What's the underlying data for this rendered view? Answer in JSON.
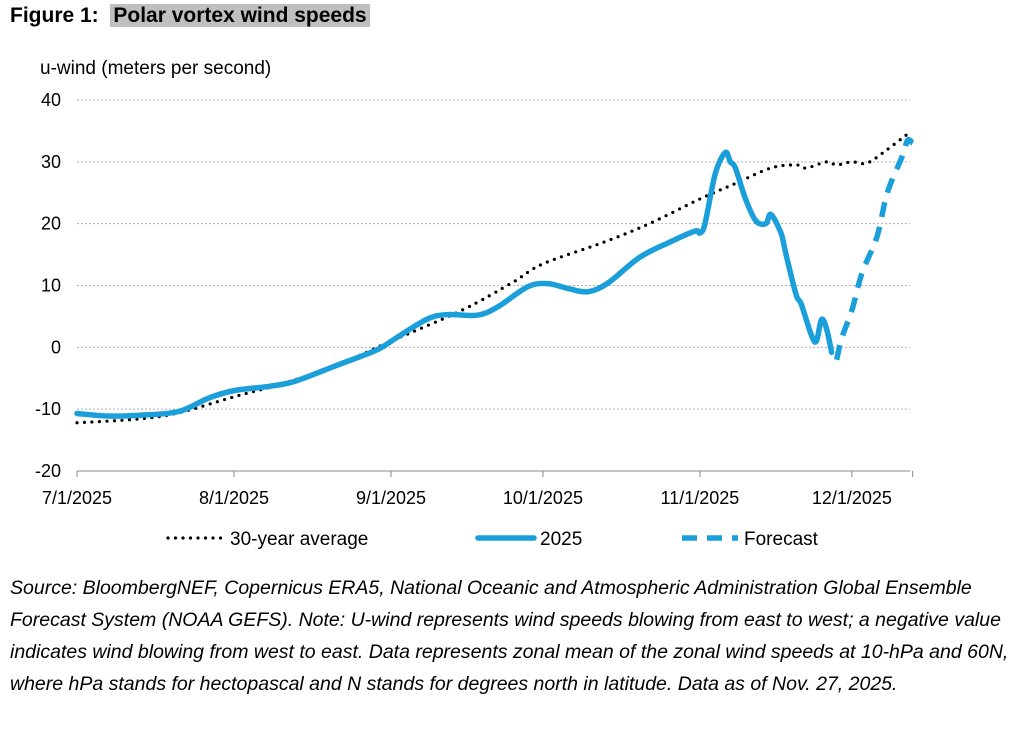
{
  "figure_label": "Figure 1:",
  "chart_data": {
    "type": "line",
    "title": "Polar vortex wind speeds",
    "ylabel": "u-wind (meters per second)",
    "xlabel": "",
    "ylim": [
      -20,
      40
    ],
    "yticks": [
      "40",
      "30",
      "20",
      "10",
      "0",
      "-10",
      "-20"
    ],
    "xticks": [
      {
        "date": "2025-07-01",
        "label": "7/1/2025"
      },
      {
        "date": "2025-08-01",
        "label": "8/1/2025"
      },
      {
        "date": "2025-09-01",
        "label": "9/1/2025"
      },
      {
        "date": "2025-10-01",
        "label": "10/1/2025"
      },
      {
        "date": "2025-11-01",
        "label": "11/1/2025"
      },
      {
        "date": "2025-12-01",
        "label": "12/1/2025"
      }
    ],
    "xlim": [
      "2025-07-01",
      "2025-12-13"
    ],
    "grid": "horizontal dotted",
    "legend": "bottom",
    "series": [
      {
        "name": "30-year average",
        "style": "dotted",
        "color": "#000000",
        "points": [
          [
            "2025-07-01",
            -12.2
          ],
          [
            "2025-07-13",
            -11.6
          ],
          [
            "2025-07-21",
            -10.6
          ],
          [
            "2025-08-01",
            -8
          ],
          [
            "2025-08-10",
            -6
          ],
          [
            "2025-08-21",
            -3
          ],
          [
            "2025-09-01",
            1
          ],
          [
            "2025-09-15",
            6
          ],
          [
            "2025-09-25",
            10.5
          ],
          [
            "2025-10-01",
            13.5
          ],
          [
            "2025-10-13",
            17
          ],
          [
            "2025-10-22",
            20
          ],
          [
            "2025-11-01",
            24
          ],
          [
            "2025-11-08",
            26.5
          ],
          [
            "2025-11-15",
            29
          ],
          [
            "2025-11-20",
            29.5
          ],
          [
            "2025-11-22",
            29
          ],
          [
            "2025-11-26",
            30
          ],
          [
            "2025-11-28",
            29.5
          ],
          [
            "2025-12-01",
            30
          ],
          [
            "2025-12-04",
            29.8
          ],
          [
            "2025-12-08",
            32
          ],
          [
            "2025-12-12",
            34.5
          ]
        ]
      },
      {
        "name": "2025",
        "style": "solid",
        "color": "#1a9fdb",
        "points": [
          [
            "2025-07-01",
            -10.7
          ],
          [
            "2025-07-07",
            -11.1
          ],
          [
            "2025-07-13",
            -11
          ],
          [
            "2025-07-21",
            -10.4
          ],
          [
            "2025-07-27",
            -8.2
          ],
          [
            "2025-08-01",
            -7
          ],
          [
            "2025-08-08",
            -6.3
          ],
          [
            "2025-08-13",
            -5.5
          ],
          [
            "2025-08-21",
            -3
          ],
          [
            "2025-08-29",
            -0.5
          ],
          [
            "2025-09-02",
            1.5
          ],
          [
            "2025-09-08",
            4.5
          ],
          [
            "2025-09-12",
            5.3
          ],
          [
            "2025-09-18",
            5.2
          ],
          [
            "2025-09-22",
            6.5
          ],
          [
            "2025-09-28",
            9.8
          ],
          [
            "2025-10-02",
            10.3
          ],
          [
            "2025-10-06",
            9.5
          ],
          [
            "2025-10-10",
            9
          ],
          [
            "2025-10-14",
            10.5
          ],
          [
            "2025-10-20",
            14.5
          ],
          [
            "2025-10-26",
            17
          ],
          [
            "2025-10-31",
            18.8
          ],
          [
            "2025-11-01",
            18.5
          ],
          [
            "2025-11-02",
            20
          ],
          [
            "2025-11-04",
            28
          ],
          [
            "2025-11-06",
            31.5
          ],
          [
            "2025-11-07",
            30
          ],
          [
            "2025-11-08",
            29
          ],
          [
            "2025-11-10",
            24
          ],
          [
            "2025-11-12",
            20.5
          ],
          [
            "2025-11-14",
            20
          ],
          [
            "2025-11-15",
            21.5
          ],
          [
            "2025-11-17",
            18.5
          ],
          [
            "2025-11-18",
            15
          ],
          [
            "2025-11-20",
            8.5
          ],
          [
            "2025-11-21",
            7
          ],
          [
            "2025-11-23",
            2
          ],
          [
            "2025-11-24",
            1
          ],
          [
            "2025-11-25",
            4.5
          ],
          [
            "2025-11-26",
            3
          ],
          [
            "2025-11-27",
            -0.8
          ]
        ]
      },
      {
        "name": "Forecast",
        "style": "dashed",
        "color": "#1a9fdb",
        "points": [
          [
            "2025-11-28",
            -2
          ],
          [
            "2025-11-29",
            1.5
          ],
          [
            "2025-12-01",
            6
          ],
          [
            "2025-12-03",
            12
          ],
          [
            "2025-12-06",
            18
          ],
          [
            "2025-12-08",
            25
          ],
          [
            "2025-12-11",
            31
          ],
          [
            "2025-12-12",
            33.5
          ],
          [
            "2025-12-13",
            33
          ]
        ]
      }
    ]
  },
  "source_note": "Source: BloombergNEF, Copernicus ERA5, National Oceanic and Atmospheric Administration Global Ensemble Forecast System (NOAA GEFS). Note: U-wind represents wind speeds blowing from east to west; a negative value indicates wind blowing from west to east. Data represents zonal mean of the zonal wind speeds at 10-hPa and 60N, where hPa stands for hectopascal and N stands for degrees north in latitude. Data as of Nov. 27, 2025."
}
